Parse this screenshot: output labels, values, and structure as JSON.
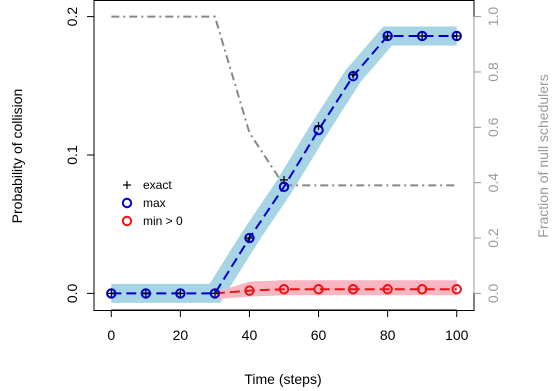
{
  "chart_data": {
    "type": "line",
    "xlabel": "Time (steps)",
    "ylabel": "Probability of collision",
    "y2label": "Fraction of null schedulers",
    "xlim": [
      -5,
      105
    ],
    "ylim": [
      -0.012,
      0.212
    ],
    "y2lim": [
      -0.06,
      1.06
    ],
    "x_ticks": [
      0,
      20,
      40,
      60,
      80,
      100
    ],
    "y_ticks": [
      0.0,
      0.1,
      0.2
    ],
    "y_tick_labels": [
      "0.0",
      "0.1",
      "0.2"
    ],
    "y2_ticks": [
      0.0,
      0.2,
      0.4,
      0.6,
      0.8,
      1.0
    ],
    "y2_tick_labels": [
      "0.0",
      "0.2",
      "0.4",
      "0.6",
      "0.8",
      "1.0"
    ],
    "x": [
      0,
      10,
      20,
      30,
      40,
      50,
      60,
      70,
      80,
      90,
      100
    ],
    "series": [
      {
        "name": "exact",
        "values": [
          0,
          0,
          0,
          0,
          0.04,
          0.082,
          0.121,
          0.158,
          0.186,
          0.186,
          0.186
        ],
        "color": "#000000",
        "marker": "plus"
      },
      {
        "name": "max",
        "values": [
          0,
          0,
          0,
          0,
          0.04,
          0.077,
          0.118,
          0.157,
          0.186,
          0.186,
          0.186
        ],
        "color": "#0000cc",
        "marker": "circle"
      },
      {
        "name": "min > 0",
        "values": [
          0,
          0,
          0,
          0,
          0.002,
          0.003,
          0.003,
          0.003,
          0.003,
          0.003,
          0.003
        ],
        "color": "#ee1111",
        "marker": "circle"
      }
    ],
    "null_fraction": {
      "x": [
        0,
        30,
        40,
        50,
        60,
        70,
        80,
        90,
        100
      ],
      "values": [
        1.0,
        1.0,
        0.58,
        0.39,
        0.39,
        0.39,
        0.39,
        0.39,
        0.39
      ],
      "axis": "right",
      "color": "#888888"
    },
    "max_band_color": "#a8d5e6",
    "min_band_color": "#f7b6c2",
    "legend_position": "center-left",
    "grid": false
  }
}
